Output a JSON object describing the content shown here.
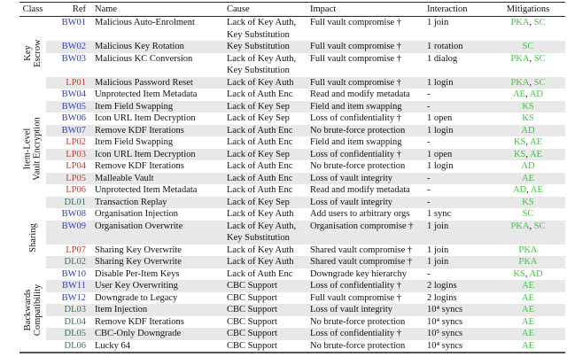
{
  "table": {
    "headers": [
      "Class",
      "Ref",
      "Name",
      "Cause",
      "Impact",
      "Interaction",
      "Mitigations"
    ],
    "colors": {
      "bw_ref": "#2f3ec9",
      "lp_ref": "#c8382f",
      "dl_ref": "#3f6e5f",
      "mitigation": "#41c541",
      "stripe": "#e8e8e8"
    },
    "groups": [
      {
        "class_lines": [
          "Key",
          "Escrow"
        ],
        "rows": [
          {
            "ref": "BW01",
            "name": "Malicious Auto-Enrolment",
            "cause_lines": [
              "Lack of Key Auth,",
              "Key Substitution"
            ],
            "impact": "Full vault compromise †",
            "interaction": "1 join",
            "mitigations": [
              "PKA",
              "SC"
            ]
          },
          {
            "ref": "BW02",
            "name": "Malicious Key Rotation",
            "cause_lines": [
              "Key Substitution"
            ],
            "impact": "Full vault compromise †",
            "interaction": "1 rotation",
            "mitigations": [
              "SC"
            ]
          },
          {
            "ref": "BW03",
            "name": "Malicious KC Conversion",
            "cause_lines": [
              "Lack of Key Auth,",
              "Key Substitution"
            ],
            "impact": "Full vault compromise †",
            "interaction": "1 dialog",
            "mitigations": [
              "PKA",
              "SC"
            ]
          },
          {
            "ref": "LP01",
            "name": "Malicious Password Reset",
            "cause_lines": [
              "Lack of Key Auth"
            ],
            "impact": "Full vault compromise †",
            "interaction": "1 login",
            "mitigations": [
              "PKA",
              "SC"
            ]
          }
        ]
      },
      {
        "class_lines": [
          "Item-Level",
          "Vault Encryption"
        ],
        "rows": [
          {
            "ref": "BW04",
            "name": "Unprotected Item Metadata",
            "cause_lines": [
              "Lack of Auth Enc"
            ],
            "impact": "Read and modify metadata",
            "interaction": "-",
            "mitigations": [
              "AE",
              "AD"
            ]
          },
          {
            "ref": "BW05",
            "name": "Item Field Swapping",
            "cause_lines": [
              "Lack of Key Sep"
            ],
            "impact": "Field and item swapping",
            "interaction": "-",
            "mitigations": [
              "KS"
            ]
          },
          {
            "ref": "BW06",
            "name": "Icon URL Item Decryption",
            "cause_lines": [
              "Lack of Key Sep"
            ],
            "impact": "Loss of confidentiality †",
            "interaction": "1 open",
            "mitigations": [
              "KS"
            ]
          },
          {
            "ref": "BW07",
            "name": "Remove KDF Iterations",
            "cause_lines": [
              "Lack of Auth Enc"
            ],
            "impact": "No brute-force protection",
            "interaction": "1 login",
            "mitigations": [
              "AD"
            ]
          },
          {
            "ref": "LP02",
            "name": "Item Field Swapping",
            "cause_lines": [
              "Lack of Auth Enc"
            ],
            "impact": "Field and item swapping",
            "interaction": "-",
            "mitigations": [
              "KS",
              "AE"
            ]
          },
          {
            "ref": "LP03",
            "name": "Icon URL Item Decryption",
            "cause_lines": [
              "Lack of Key Sep"
            ],
            "impact": "Loss of confidentiality †",
            "interaction": "1 open",
            "mitigations": [
              "KS",
              "AE"
            ]
          },
          {
            "ref": "LP04",
            "name": "Remove KDF Iterations",
            "cause_lines": [
              "Lack of Auth Enc"
            ],
            "impact": "No brute-force protection",
            "interaction": "1 login",
            "mitigations": [
              "AD"
            ]
          },
          {
            "ref": "LP05",
            "name": "Malleable Vault",
            "cause_lines": [
              "Lack of Auth Enc"
            ],
            "impact": "Loss of vault integrity",
            "interaction": "-",
            "mitigations": [
              "AE"
            ]
          },
          {
            "ref": "LP06",
            "name": "Unprotected Item Metadata",
            "cause_lines": [
              "Lack of Auth Enc"
            ],
            "impact": "Read and modify metadata",
            "interaction": "-",
            "mitigations": [
              "AD",
              "AE"
            ]
          },
          {
            "ref": "DL01",
            "name": "Transaction Replay",
            "cause_lines": [
              "Lack of Key Sep"
            ],
            "impact": "Loss of vault integrity",
            "interaction": "-",
            "mitigations": [
              "KS"
            ]
          }
        ]
      },
      {
        "class_lines": [
          "Sharing"
        ],
        "rows": [
          {
            "ref": "BW08",
            "name": "Organisation Injection",
            "cause_lines": [
              "Lack of Key Auth"
            ],
            "impact": "Add users to arbitrary orgs",
            "interaction": "1 sync",
            "mitigations": [
              "SC"
            ]
          },
          {
            "ref": "BW09",
            "name": "Organisation Overwrite",
            "cause_lines": [
              "Lack of Key Auth,",
              "Key Substitution"
            ],
            "impact": "Organisation compromise †",
            "interaction": "1 join",
            "mitigations": [
              "PKA",
              "SC"
            ]
          },
          {
            "ref": "LP07",
            "name": "Sharing Key Overwrite",
            "cause_lines": [
              "Lack of Key Auth"
            ],
            "impact": "Shared vault compromise †",
            "interaction": "1 join",
            "mitigations": [
              "PKA"
            ]
          },
          {
            "ref": "DL02",
            "name": "Sharing Key Overwrite",
            "cause_lines": [
              "Lack of Key Auth"
            ],
            "impact": "Shared vault compromise †",
            "interaction": "1 join",
            "mitigations": [
              "PKA"
            ]
          }
        ]
      },
      {
        "class_lines": [
          "Backwards",
          "Compatibility"
        ],
        "rows": [
          {
            "ref": "BW10",
            "name": "Disable Per-Item Keys",
            "cause_lines": [
              "Lack of Auth Enc"
            ],
            "impact": "Downgrade key hierarchy",
            "interaction": "-",
            "mitigations": [
              "KS",
              "AD"
            ]
          },
          {
            "ref": "BW11",
            "name": "User Key Overwriting",
            "cause_lines": [
              "CBC Support"
            ],
            "impact": "Loss of confidentiality †",
            "interaction": "2 logins",
            "mitigations": [
              "AE"
            ]
          },
          {
            "ref": "BW12",
            "name": "Downgrade to Legacy",
            "cause_lines": [
              "CBC Support"
            ],
            "impact": "Full vault compromise †",
            "interaction": "2 logins",
            "mitigations": [
              "AE"
            ]
          },
          {
            "ref": "DL03",
            "name": "Item Injection",
            "cause_lines": [
              "CBC Support"
            ],
            "impact": "Loss of vault integrity",
            "interaction": "10⁴ syncs",
            "mitigations": [
              "AE"
            ]
          },
          {
            "ref": "DL04",
            "name": "Remove KDF Iterations",
            "cause_lines": [
              "CBC Support"
            ],
            "impact": "No brute-force protection",
            "interaction": "10⁴ syncs",
            "mitigations": [
              "AE"
            ]
          },
          {
            "ref": "DL05",
            "name": "CBC-Only Downgrade",
            "cause_lines": [
              "CBC Support"
            ],
            "impact": "Loss of confidentiality †",
            "interaction": "10⁵ syncs",
            "mitigations": [
              "AE"
            ]
          },
          {
            "ref": "DL06",
            "name": "Lucky 64",
            "cause_lines": [
              "CBC Support"
            ],
            "impact": "No brute-force protection",
            "interaction": "10⁴ syncs",
            "mitigations": [
              "AE"
            ]
          }
        ]
      }
    ]
  }
}
